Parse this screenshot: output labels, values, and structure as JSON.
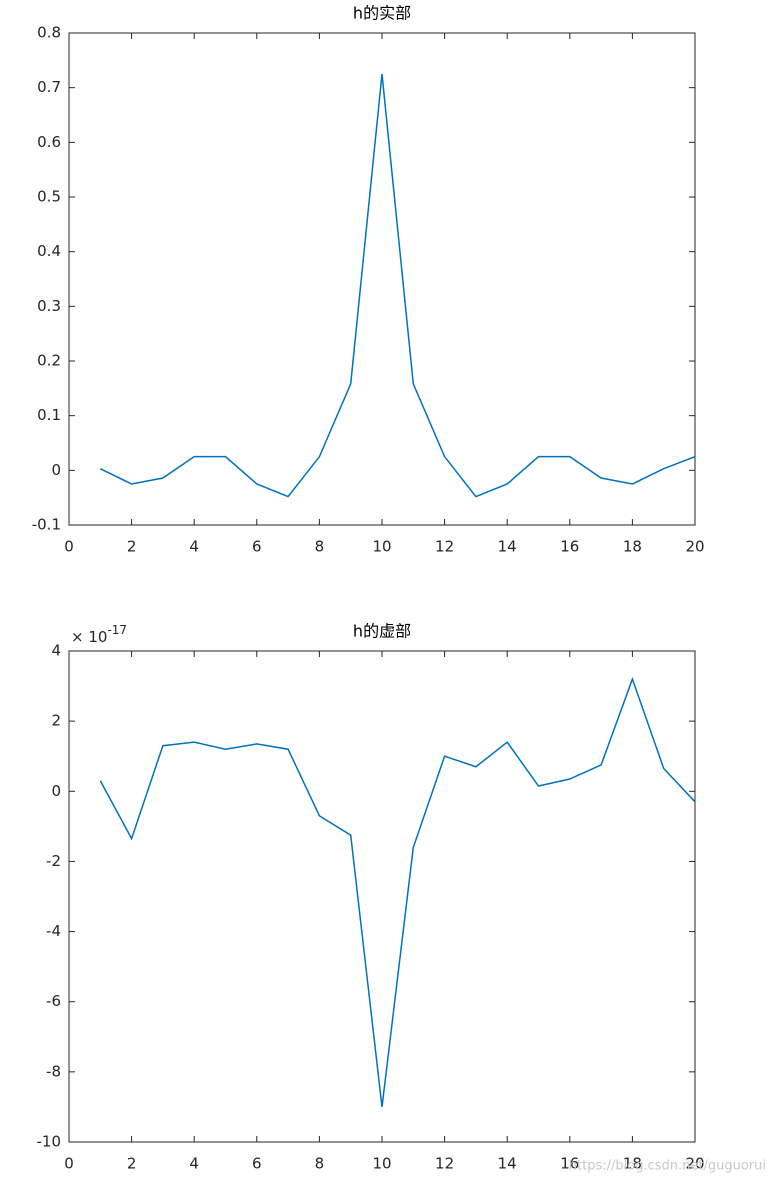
{
  "chart_data": [
    {
      "type": "line",
      "title": "h的实部",
      "x": [
        1,
        2,
        3,
        4,
        5,
        6,
        7,
        8,
        9,
        10,
        11,
        12,
        13,
        14,
        15,
        16,
        17,
        18,
        19,
        20
      ],
      "series": [
        {
          "name": "h",
          "color": "#0072bd",
          "values": [
            0.003,
            -0.025,
            -0.014,
            0.025,
            0.025,
            -0.025,
            -0.048,
            0.025,
            0.158,
            0.725,
            0.158,
            0.025,
            -0.048,
            -0.025,
            0.025,
            0.025,
            -0.014,
            -0.025,
            0.003,
            0.025
          ]
        }
      ],
      "xlim": [
        0,
        20
      ],
      "xticks": [
        0,
        2,
        4,
        6,
        8,
        10,
        12,
        14,
        16,
        18,
        20
      ],
      "ylim": [
        -0.1,
        0.8
      ],
      "yticks": [
        -0.1,
        0,
        0.1,
        0.2,
        0.3,
        0.4,
        0.5,
        0.6,
        0.7,
        0.8
      ]
    },
    {
      "type": "line",
      "title": "h的虚部",
      "exponent": {
        "base": "× 10",
        "power": "-17"
      },
      "x": [
        1,
        2,
        3,
        4,
        5,
        6,
        7,
        8,
        9,
        10,
        11,
        12,
        13,
        14,
        15,
        16,
        17,
        18,
        19,
        20
      ],
      "series": [
        {
          "name": "h",
          "color": "#0072bd",
          "values": [
            0.3,
            -1.35,
            1.3,
            1.4,
            1.2,
            1.35,
            1.2,
            -0.7,
            -1.25,
            -9.0,
            -1.6,
            1.0,
            0.7,
            1.4,
            0.15,
            0.35,
            0.75,
            3.2,
            0.65,
            -0.3
          ]
        }
      ],
      "xlim": [
        0,
        20
      ],
      "xticks": [
        0,
        2,
        4,
        6,
        8,
        10,
        12,
        14,
        16,
        18,
        20
      ],
      "ylim": [
        -10,
        4
      ],
      "yticks": [
        -10,
        -8,
        -6,
        -4,
        -2,
        0,
        2,
        4
      ],
      "watermark": "https://blog.csdn.net/guguorui"
    }
  ]
}
